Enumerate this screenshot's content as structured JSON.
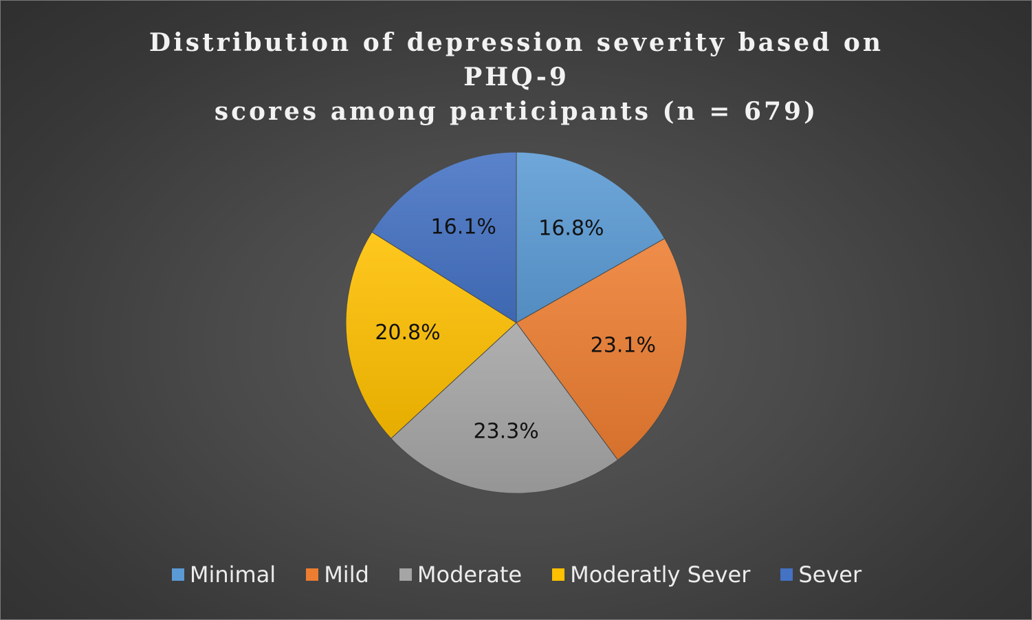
{
  "chart_data": {
    "type": "pie",
    "title": "Distribution of depression severity based on PHQ-9 scores among participants (n = 679)",
    "title_lines": [
      "Distribution of depression severity based on PHQ-9",
      "scores among participants (n = 679)"
    ],
    "categories": [
      "Minimal",
      "Mild",
      "Moderate",
      "Moderatly Sever",
      "Sever"
    ],
    "values": [
      16.8,
      23.1,
      23.3,
      20.8,
      16.1
    ],
    "labels": [
      "16.8%",
      "23.1%",
      "23.3%",
      "20.8%",
      "16.1%"
    ],
    "colors": [
      "#5B9BD5",
      "#ED7D31",
      "#A5A5A5",
      "#FFC000",
      "#4472C4"
    ],
    "legend_position": "bottom",
    "start_angle": "12 o'clock",
    "direction": "clockwise"
  }
}
